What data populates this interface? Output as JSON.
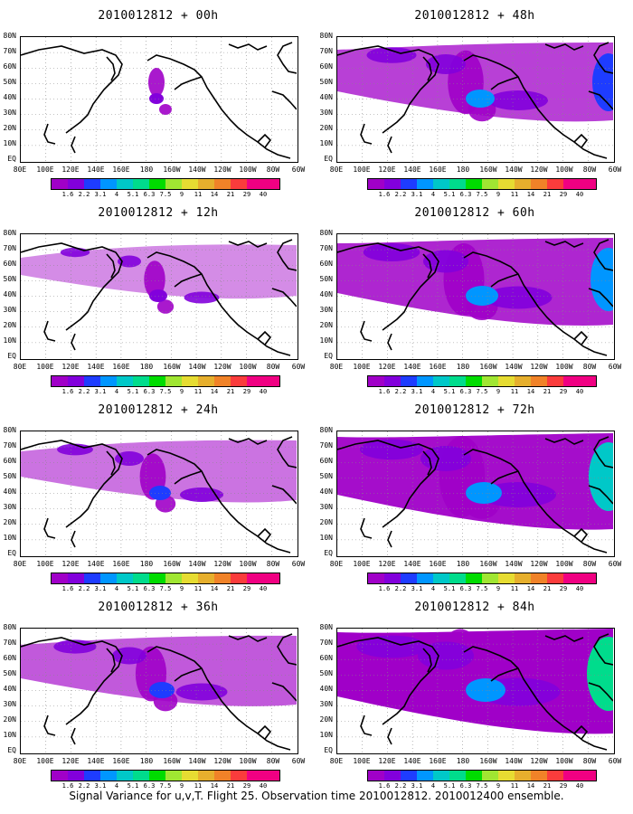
{
  "panels": [
    {
      "title": "2010012812 + 00h",
      "intensity": 0
    },
    {
      "title": "2010012812 + 48h",
      "intensity": 4
    },
    {
      "title": "2010012812 + 12h",
      "intensity": 1
    },
    {
      "title": "2010012812 + 60h",
      "intensity": 5
    },
    {
      "title": "2010012812 + 24h",
      "intensity": 2
    },
    {
      "title": "2010012812 + 72h",
      "intensity": 6
    },
    {
      "title": "2010012812 + 36h",
      "intensity": 3
    },
    {
      "title": "2010012812 + 84h",
      "intensity": 7
    }
  ],
  "lat_labels": [
    "80N",
    "70N",
    "60N",
    "50N",
    "40N",
    "30N",
    "20N",
    "10N",
    "EQ"
  ],
  "lon_labels": [
    "80E",
    "100E",
    "120E",
    "140E",
    "160E",
    "180",
    "160W",
    "140W",
    "120W",
    "100W",
    "80W",
    "60W"
  ],
  "colorbar": {
    "labels": [
      "1.6",
      "2.2",
      "3.1",
      "4",
      "5.1",
      "6.3",
      "7.5",
      "9",
      "11",
      "14",
      "21",
      "29",
      "40"
    ],
    "colors": [
      "#a000c8",
      "#8200dc",
      "#1e3cff",
      "#0096ff",
      "#00c8c8",
      "#00dc8c",
      "#00dc00",
      "#a0e632",
      "#e6dc32",
      "#e6af2d",
      "#f08228",
      "#fa3c3c",
      "#f00082"
    ]
  },
  "footer": "Signal Variance for u,v,T. Flight 25. Observation time 2010012812. 2010012400 ensemble."
}
